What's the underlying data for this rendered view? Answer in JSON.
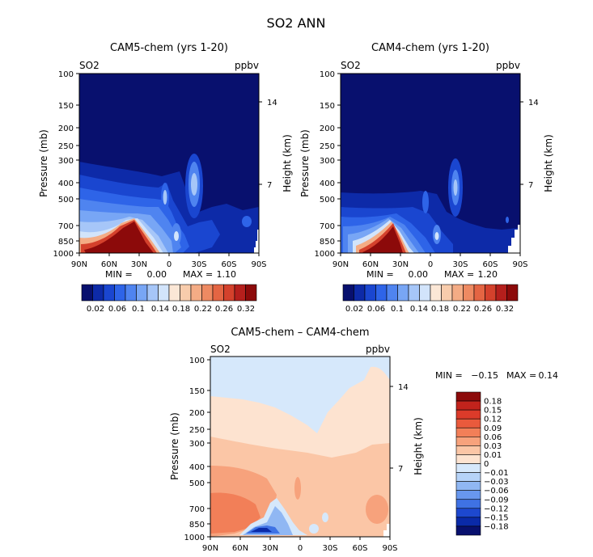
{
  "figure_title": "SO2 ANN",
  "chart_data": [
    {
      "type": "heatmap",
      "title": "CAM5-chem (yrs 1-20)",
      "field_label": "SO2",
      "units": "ppbv",
      "xlabel": "",
      "ylabel": "Pressure (mb)",
      "y2label": "Height (km)",
      "x_ticks": [
        "90N",
        "60N",
        "30N",
        "0",
        "30S",
        "60S",
        "90S"
      ],
      "y_ticks": [
        100,
        150,
        200,
        250,
        300,
        400,
        500,
        700,
        850,
        1000
      ],
      "y2_ticks": [
        14,
        7
      ],
      "ylim": [
        100,
        1000
      ],
      "min_max": {
        "min_label": "MIN =",
        "min": "0.00",
        "max_label": "MAX =",
        "max": "1.10"
      },
      "colorbar": {
        "levels": [
          0.02,
          0.04,
          0.06,
          0.08,
          0.1,
          0.12,
          0.14,
          0.16,
          0.18,
          0.2,
          0.22,
          0.24,
          0.26,
          0.28,
          0.3,
          0.32
        ],
        "labels": [
          "0.02",
          "0.06",
          "0.1",
          "0.14",
          "0.18",
          "0.22",
          "0.26",
          "0.32"
        ],
        "colors": [
          "#08106e",
          "#0d2aa8",
          "#1a46d0",
          "#2e64e8",
          "#4f84f0",
          "#78a6f5",
          "#a6c6f8",
          "#d2e4fb",
          "#fbe7d6",
          "#f8ccac",
          "#f4ac85",
          "#ee8a62",
          "#e46543",
          "#d4412c",
          "#b51f1c",
          "#8c0a0a"
        ]
      }
    },
    {
      "type": "heatmap",
      "title": "CAM4-chem (yrs 1-20)",
      "field_label": "SO2",
      "units": "ppbv",
      "xlabel": "",
      "ylabel": "Pressure (mb)",
      "y2label": "Height (km)",
      "x_ticks": [
        "90N",
        "60N",
        "30N",
        "0",
        "30S",
        "60S",
        "90S"
      ],
      "y_ticks": [
        100,
        150,
        200,
        250,
        300,
        400,
        500,
        700,
        850,
        1000
      ],
      "y2_ticks": [
        14,
        7
      ],
      "ylim": [
        100,
        1000
      ],
      "min_max": {
        "min_label": "MIN =",
        "min": "0.00",
        "max_label": "MAX =",
        "max": "1.20"
      },
      "colorbar": {
        "levels": [
          0.02,
          0.04,
          0.06,
          0.08,
          0.1,
          0.12,
          0.14,
          0.16,
          0.18,
          0.2,
          0.22,
          0.24,
          0.26,
          0.28,
          0.3,
          0.32
        ],
        "labels": [
          "0.02",
          "0.06",
          "0.1",
          "0.14",
          "0.18",
          "0.22",
          "0.26",
          "0.32"
        ],
        "colors": [
          "#08106e",
          "#0d2aa8",
          "#1a46d0",
          "#2e64e8",
          "#4f84f0",
          "#78a6f5",
          "#a6c6f8",
          "#d2e4fb",
          "#fbe7d6",
          "#f8ccac",
          "#f4ac85",
          "#ee8a62",
          "#e46543",
          "#d4412c",
          "#b51f1c",
          "#8c0a0a"
        ]
      }
    },
    {
      "type": "heatmap",
      "title": "CAM5-chem – CAM4-chem",
      "field_label": "SO2",
      "units": "ppbv",
      "xlabel": "",
      "ylabel": "Pressure (mb)",
      "y2label": "Height (km)",
      "x_ticks": [
        "90N",
        "60N",
        "30N",
        "0",
        "30S",
        "60S",
        "90S"
      ],
      "y_ticks": [
        100,
        150,
        200,
        250,
        300,
        400,
        500,
        700,
        850,
        1000
      ],
      "y2_ticks": [
        14,
        7
      ],
      "ylim": [
        100,
        1000
      ],
      "min_max": {
        "min_label": "MIN =",
        "min": "−0.15",
        "max_label": "MAX =",
        "max": "0.14"
      },
      "colorbar": {
        "labels": [
          "0.18",
          "0.15",
          "0.12",
          "0.09",
          "0.06",
          "0.03",
          "0.01",
          "0",
          "−0.01",
          "−0.03",
          "−0.06",
          "−0.09",
          "−0.12",
          "−0.15",
          "−0.18"
        ],
        "colors": [
          "#8c0a0a",
          "#c2231c",
          "#dc3b2a",
          "#ea5a3c",
          "#f27f58",
          "#f7a27c",
          "#fbc6a6",
          "#fde3d0",
          "#d6e8fb",
          "#b6d3f8",
          "#90b7f3",
          "#6897ee",
          "#3f72e4",
          "#1d48cf",
          "#0a2aa8",
          "#08106e"
        ]
      }
    }
  ]
}
